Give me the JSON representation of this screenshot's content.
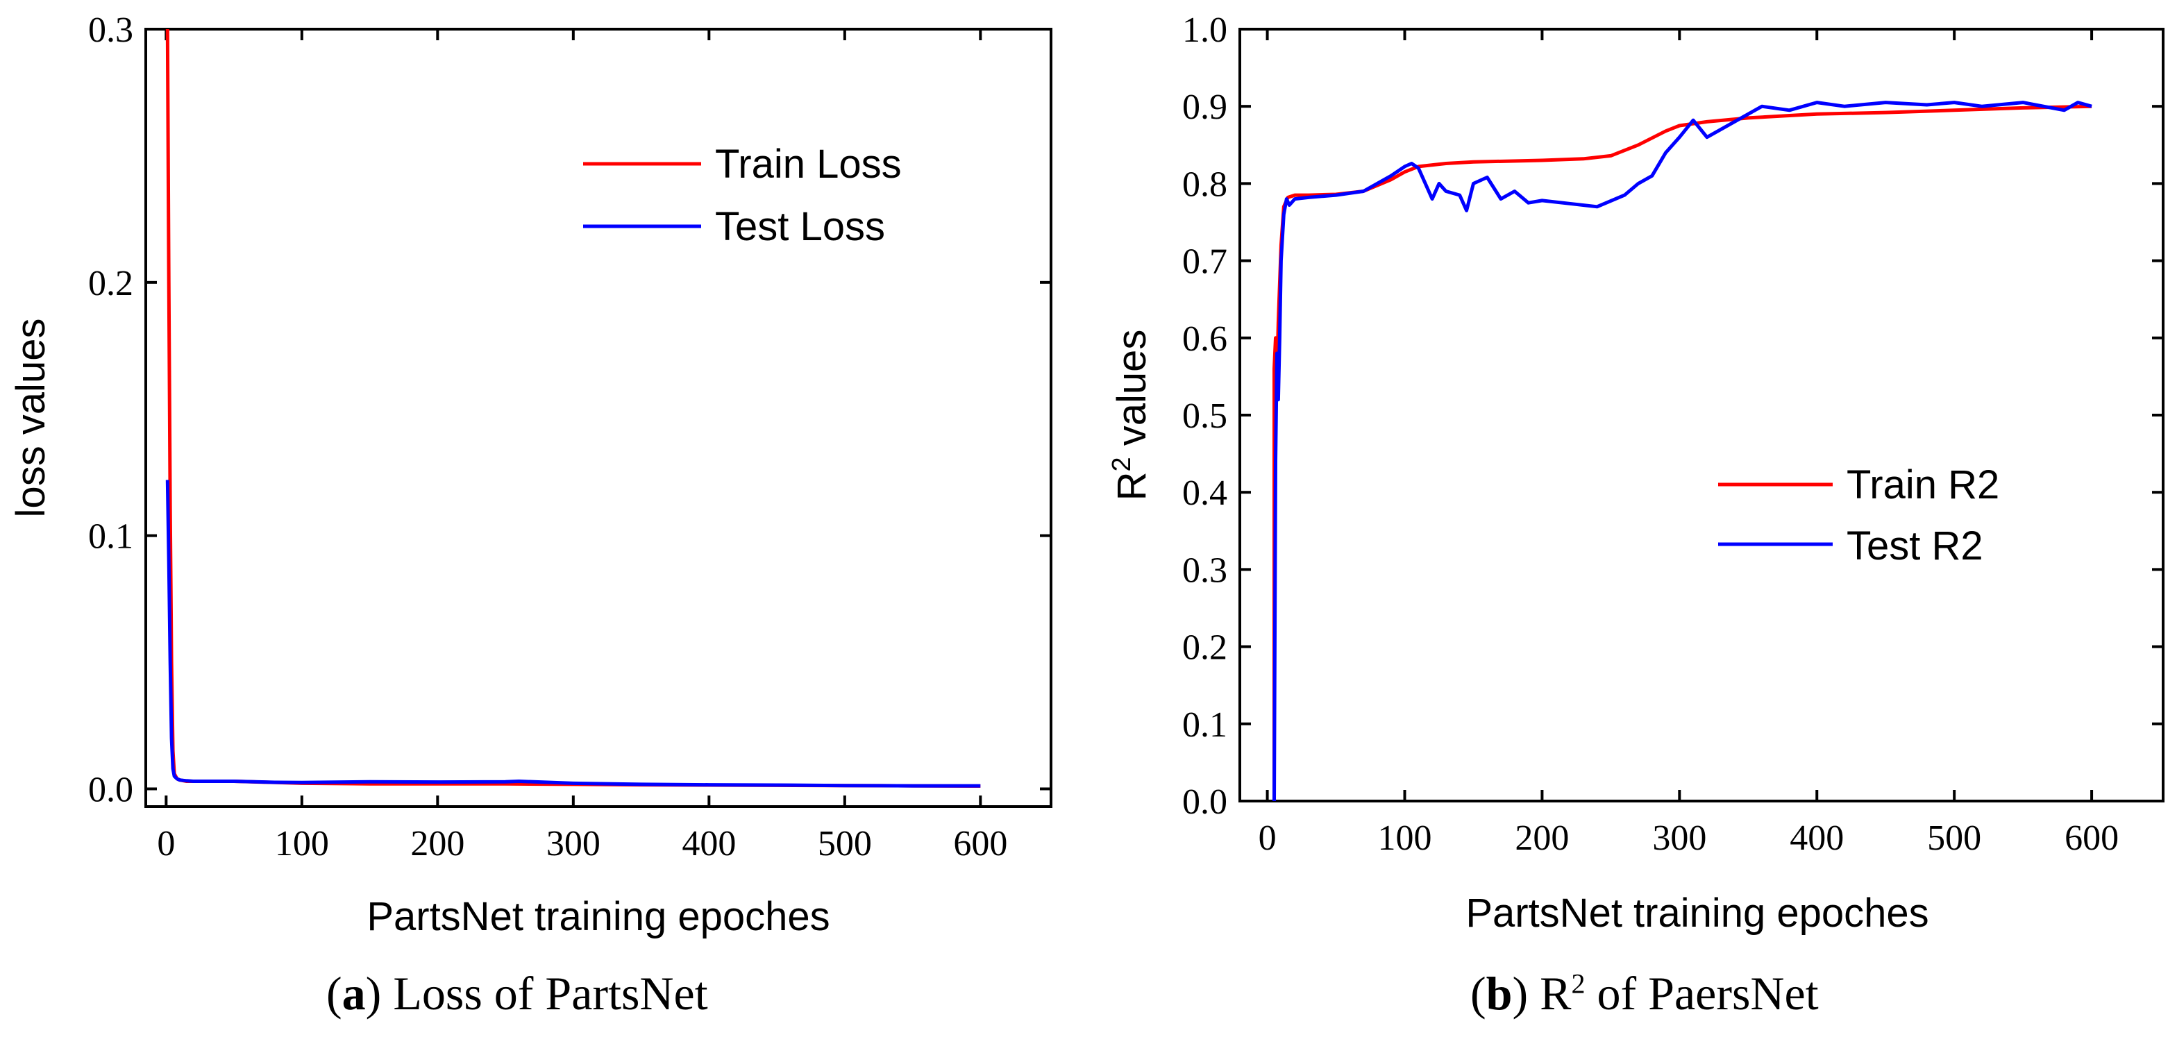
{
  "chart_data": [
    {
      "type": "line",
      "panel": "a",
      "title": "",
      "xlabel": "PartsNet training epoches",
      "ylabel": "loss values",
      "xlim": [
        -15,
        652
      ],
      "ylim": [
        -0.007,
        0.3
      ],
      "x_ticks": [
        0,
        100,
        200,
        300,
        400,
        500,
        600
      ],
      "y_ticks": [
        0.0,
        0.1,
        0.2,
        0.3
      ],
      "y_tick_labels": [
        "0.0",
        "0.1",
        "0.2",
        "0.3"
      ],
      "legend_position": "top-right",
      "series": [
        {
          "name": "Train Loss",
          "color": "#ff0000",
          "x": [
            1,
            2,
            3,
            4,
            5,
            6,
            8,
            10,
            15,
            20,
            50,
            100,
            150,
            200,
            250,
            300,
            350,
            400,
            450,
            500,
            550,
            600
          ],
          "y": [
            0.3,
            0.2,
            0.11,
            0.05,
            0.015,
            0.006,
            0.004,
            0.0035,
            0.003,
            0.003,
            0.003,
            0.0022,
            0.002,
            0.002,
            0.002,
            0.0018,
            0.0016,
            0.0015,
            0.0014,
            0.0013,
            0.0012,
            0.0011
          ]
        },
        {
          "name": "Test Loss",
          "color": "#0000ff",
          "x": [
            1,
            2,
            3,
            4,
            5,
            6,
            8,
            10,
            15,
            20,
            50,
            80,
            100,
            150,
            200,
            250,
            260,
            300,
            350,
            400,
            450,
            500,
            550,
            600
          ],
          "y": [
            0.122,
            0.09,
            0.05,
            0.02,
            0.008,
            0.005,
            0.004,
            0.0035,
            0.0032,
            0.003,
            0.003,
            0.0026,
            0.0025,
            0.0028,
            0.0027,
            0.0028,
            0.003,
            0.0022,
            0.0018,
            0.0016,
            0.0015,
            0.0013,
            0.0012,
            0.0012
          ]
        }
      ]
    },
    {
      "type": "line",
      "panel": "b",
      "title": "",
      "xlabel": "PartsNet training epoches",
      "ylabel": "R2 values",
      "ylabel_main": "R",
      "ylabel_sup": "2",
      "ylabel_rest": " values",
      "xlim": [
        -20,
        652
      ],
      "ylim": [
        0.0,
        1.0
      ],
      "x_ticks": [
        0,
        100,
        200,
        300,
        400,
        500,
        600
      ],
      "y_ticks": [
        0.0,
        0.1,
        0.2,
        0.3,
        0.4,
        0.5,
        0.6,
        0.7,
        0.8,
        0.9,
        1.0
      ],
      "y_tick_labels": [
        "0.0",
        "0.1",
        "0.2",
        "0.3",
        "0.4",
        "0.5",
        "0.6",
        "0.7",
        "0.8",
        "0.9",
        "1.0"
      ],
      "legend_position": "center-right",
      "series": [
        {
          "name": "Train R2",
          "color": "#ff0000",
          "x": [
            5,
            5,
            6,
            7,
            8,
            10,
            12,
            15,
            20,
            30,
            50,
            70,
            90,
            100,
            110,
            130,
            150,
            200,
            230,
            250,
            270,
            290,
            300,
            320,
            350,
            380,
            400,
            450,
            500,
            550,
            600
          ],
          "y": [
            0.0,
            0.56,
            0.6,
            0.55,
            0.62,
            0.72,
            0.77,
            0.782,
            0.785,
            0.785,
            0.786,
            0.79,
            0.805,
            0.815,
            0.822,
            0.826,
            0.828,
            0.83,
            0.832,
            0.836,
            0.85,
            0.868,
            0.875,
            0.88,
            0.885,
            0.888,
            0.89,
            0.892,
            0.895,
            0.898,
            0.9
          ]
        },
        {
          "name": "Test R2",
          "color": "#0000ff",
          "x": [
            5,
            6,
            7,
            8,
            9,
            10,
            12,
            14,
            16,
            20,
            30,
            50,
            70,
            90,
            100,
            105,
            110,
            115,
            120,
            125,
            130,
            140,
            145,
            150,
            160,
            170,
            180,
            190,
            200,
            220,
            240,
            260,
            270,
            280,
            290,
            300,
            310,
            320,
            340,
            360,
            380,
            400,
            420,
            450,
            480,
            500,
            520,
            550,
            580,
            590,
            600
          ],
          "y": [
            0.0,
            0.44,
            0.58,
            0.52,
            0.6,
            0.7,
            0.76,
            0.78,
            0.772,
            0.78,
            0.782,
            0.785,
            0.79,
            0.81,
            0.822,
            0.826,
            0.82,
            0.8,
            0.78,
            0.8,
            0.79,
            0.785,
            0.765,
            0.8,
            0.808,
            0.78,
            0.79,
            0.775,
            0.778,
            0.774,
            0.77,
            0.785,
            0.8,
            0.81,
            0.84,
            0.86,
            0.882,
            0.86,
            0.88,
            0.9,
            0.895,
            0.905,
            0.9,
            0.905,
            0.902,
            0.905,
            0.9,
            0.905,
            0.895,
            0.905,
            0.9
          ]
        }
      ]
    }
  ],
  "captions": {
    "a_label": "a",
    "a_text": "Loss of PartsNet",
    "b_label": "b",
    "b_r": "R",
    "b_sup": "2",
    "b_text": "of PaersNet"
  }
}
